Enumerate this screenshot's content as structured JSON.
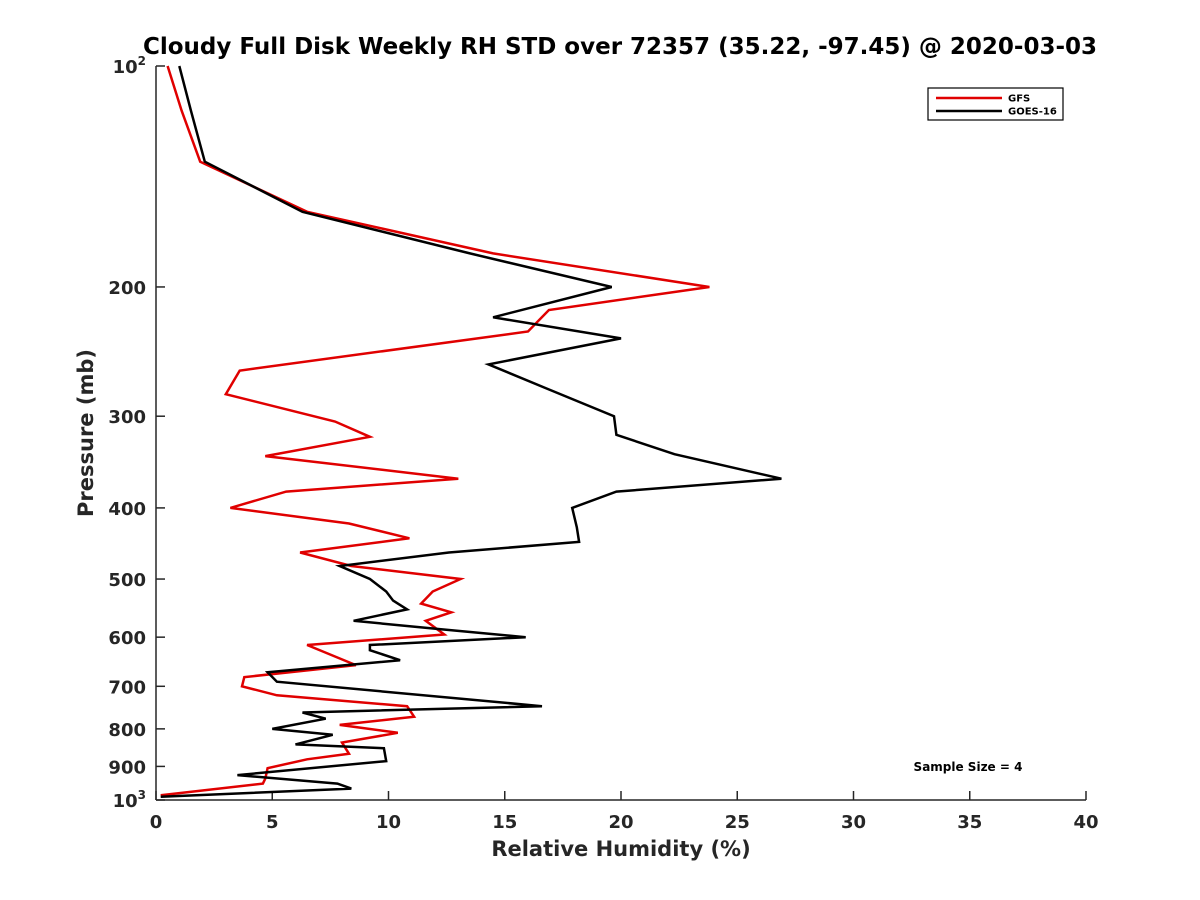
{
  "chart_data": {
    "type": "line",
    "title": "Cloudy Full Disk Weekly RH STD over 72357 (35.22, -97.45) @ 2020-03-03",
    "xlabel": "Relative Humidity (%)",
    "ylabel": "Pressure (mb)",
    "xlim": [
      0,
      40
    ],
    "ylim": [
      100,
      1000
    ],
    "y_scale": "log",
    "y_reversed": true,
    "grid": false,
    "legend_position": "top-right",
    "x_ticks": [
      "0",
      "5",
      "10",
      "15",
      "20",
      "25",
      "30",
      "35",
      "40"
    ],
    "y_ticks": [
      {
        "value": 100,
        "base": "10",
        "exp": "2"
      },
      {
        "value": 200,
        "label": "200"
      },
      {
        "value": 300,
        "label": "300"
      },
      {
        "value": 400,
        "label": "400"
      },
      {
        "value": 500,
        "label": "500"
      },
      {
        "value": 600,
        "label": "600"
      },
      {
        "value": 700,
        "label": "700"
      },
      {
        "value": 800,
        "label": "800"
      },
      {
        "value": 900,
        "label": "900"
      },
      {
        "value": 1000,
        "base": "10",
        "exp": "3"
      }
    ],
    "annotation": "Sample Size = 4",
    "series": [
      {
        "name": "GFS",
        "color": "#e00000",
        "points": [
          [
            0.5,
            100
          ],
          [
            1.1,
            115
          ],
          [
            1.9,
            135
          ],
          [
            6.5,
            158
          ],
          [
            14.5,
            180
          ],
          [
            23.8,
            200
          ],
          [
            16.9,
            215
          ],
          [
            16.0,
            230
          ],
          [
            3.6,
            260
          ],
          [
            3.0,
            280
          ],
          [
            7.7,
            305
          ],
          [
            9.2,
            320
          ],
          [
            4.7,
            340
          ],
          [
            13.0,
            365
          ],
          [
            5.6,
            380
          ],
          [
            3.2,
            400
          ],
          [
            8.3,
            420
          ],
          [
            10.9,
            440
          ],
          [
            6.2,
            460
          ],
          [
            8.4,
            480
          ],
          [
            13.1,
            500
          ],
          [
            11.9,
            520
          ],
          [
            11.4,
            540
          ],
          [
            12.7,
            555
          ],
          [
            11.6,
            570
          ],
          [
            12.4,
            595
          ],
          [
            6.5,
            615
          ],
          [
            8.6,
            655
          ],
          [
            3.8,
            680
          ],
          [
            3.7,
            700
          ],
          [
            5.2,
            720
          ],
          [
            10.8,
            745
          ],
          [
            11.1,
            770
          ],
          [
            7.9,
            790
          ],
          [
            10.4,
            810
          ],
          [
            8.0,
            835
          ],
          [
            8.3,
            865
          ],
          [
            6.5,
            880
          ],
          [
            4.8,
            905
          ],
          [
            4.7,
            935
          ],
          [
            4.6,
            950
          ],
          [
            0.2,
            985
          ]
        ]
      },
      {
        "name": "GOES-16",
        "color": "#000000",
        "points": [
          [
            1.0,
            100
          ],
          [
            1.5,
            115
          ],
          [
            2.1,
            135
          ],
          [
            6.3,
            158
          ],
          [
            13.5,
            180
          ],
          [
            19.6,
            200
          ],
          [
            14.5,
            220
          ],
          [
            20.0,
            235
          ],
          [
            14.3,
            255
          ],
          [
            16.8,
            275
          ],
          [
            19.7,
            300
          ],
          [
            19.8,
            318
          ],
          [
            22.3,
            338
          ],
          [
            26.9,
            365
          ],
          [
            19.8,
            380
          ],
          [
            17.9,
            400
          ],
          [
            18.1,
            425
          ],
          [
            18.2,
            445
          ],
          [
            12.6,
            460
          ],
          [
            7.9,
            480
          ],
          [
            9.2,
            500
          ],
          [
            9.9,
            520
          ],
          [
            10.2,
            535
          ],
          [
            10.8,
            550
          ],
          [
            8.5,
            570
          ],
          [
            12.2,
            585
          ],
          [
            15.9,
            600
          ],
          [
            9.2,
            615
          ],
          [
            9.2,
            625
          ],
          [
            10.5,
            645
          ],
          [
            4.8,
            670
          ],
          [
            5.2,
            690
          ],
          [
            16.6,
            745
          ],
          [
            6.3,
            760
          ],
          [
            7.3,
            775
          ],
          [
            5.0,
            800
          ],
          [
            7.6,
            815
          ],
          [
            6.0,
            840
          ],
          [
            9.8,
            850
          ],
          [
            9.9,
            885
          ],
          [
            3.5,
            925
          ],
          [
            7.8,
            950
          ],
          [
            8.4,
            965
          ],
          [
            0.2,
            990
          ]
        ]
      }
    ]
  }
}
